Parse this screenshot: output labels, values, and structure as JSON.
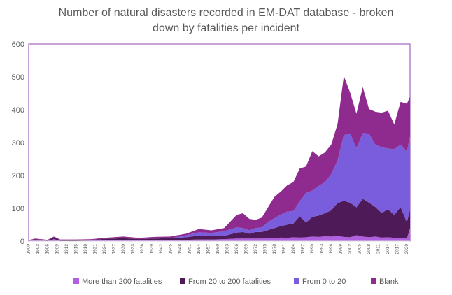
{
  "chart_data": {
    "type": "area",
    "stacked": true,
    "title": "Number of natural disasters recorded in EM-DAT database - broken down by fatalities per incident",
    "title_lines": [
      "Number of natural disasters recorded in EM-DAT database - broken",
      "down by fatalities per incident"
    ],
    "xlabel": "",
    "ylabel": "",
    "x_range": [
      1900,
      2021
    ],
    "ylim": [
      0,
      600
    ],
    "y_ticks": [
      0,
      100,
      200,
      300,
      400,
      500,
      600
    ],
    "y_tick_labels": [
      "0",
      "100",
      "200",
      "300",
      "400",
      "500",
      "600"
    ],
    "x_tick_labels": [
      "1900",
      "1903",
      "1906",
      "1909",
      "1912",
      "1915",
      "1918",
      "1921",
      "1924",
      "1927",
      "1930",
      "1933",
      "1936",
      "1939",
      "1942",
      "1945",
      "1948",
      "1951",
      "1954",
      "1957",
      "1960",
      "1963",
      "1966",
      "1969",
      "1972",
      "1975",
      "1978",
      "1981",
      "1984",
      "1987",
      "1990",
      "1993",
      "1996",
      "1999",
      "2002",
      "2005",
      "2008",
      "2011",
      "2014",
      "2017",
      "2020"
    ],
    "grid": false,
    "legend_position": "bottom",
    "colors": {
      "more_than_200": "#b05fe0",
      "from_20_to_200": "#4e1a57",
      "from_0_to_20": "#7a5ddd",
      "blank": "#8f2a8f",
      "frame": "#8e44ad",
      "axis_text": "#595959"
    },
    "series": [
      {
        "name": "More than 200 fatalities",
        "key": "more_than_200",
        "points": [
          [
            1900,
            1
          ],
          [
            1902,
            4
          ],
          [
            1906,
            1
          ],
          [
            1908,
            6
          ],
          [
            1910,
            1
          ],
          [
            1915,
            1
          ],
          [
            1920,
            2
          ],
          [
            1924,
            3
          ],
          [
            1930,
            4
          ],
          [
            1935,
            2
          ],
          [
            1940,
            3
          ],
          [
            1945,
            3
          ],
          [
            1950,
            4
          ],
          [
            1954,
            5
          ],
          [
            1958,
            5
          ],
          [
            1962,
            6
          ],
          [
            1966,
            8
          ],
          [
            1970,
            8
          ],
          [
            1974,
            8
          ],
          [
            1976,
            9
          ],
          [
            1978,
            10
          ],
          [
            1980,
            11
          ],
          [
            1982,
            10
          ],
          [
            1984,
            12
          ],
          [
            1986,
            11
          ],
          [
            1988,
            12
          ],
          [
            1990,
            14
          ],
          [
            1992,
            13
          ],
          [
            1994,
            15
          ],
          [
            1996,
            14
          ],
          [
            1998,
            16
          ],
          [
            2000,
            13
          ],
          [
            2002,
            12
          ],
          [
            2004,
            18
          ],
          [
            2006,
            14
          ],
          [
            2008,
            12
          ],
          [
            2010,
            14
          ],
          [
            2012,
            11
          ],
          [
            2014,
            12
          ],
          [
            2016,
            10
          ],
          [
            2018,
            9
          ],
          [
            2020,
            8
          ],
          [
            2021,
            40
          ]
        ]
      },
      {
        "name": "From 20 to 200 fatalities",
        "key": "from_20_to_200",
        "points": [
          [
            1900,
            1
          ],
          [
            1902,
            2
          ],
          [
            1906,
            1
          ],
          [
            1908,
            6
          ],
          [
            1910,
            2
          ],
          [
            1915,
            2
          ],
          [
            1920,
            2
          ],
          [
            1924,
            4
          ],
          [
            1930,
            5
          ],
          [
            1935,
            4
          ],
          [
            1940,
            5
          ],
          [
            1945,
            6
          ],
          [
            1950,
            8
          ],
          [
            1954,
            12
          ],
          [
            1958,
            10
          ],
          [
            1962,
            10
          ],
          [
            1966,
            18
          ],
          [
            1968,
            20
          ],
          [
            1970,
            15
          ],
          [
            1972,
            20
          ],
          [
            1974,
            20
          ],
          [
            1976,
            25
          ],
          [
            1978,
            30
          ],
          [
            1980,
            35
          ],
          [
            1982,
            40
          ],
          [
            1984,
            42
          ],
          [
            1986,
            65
          ],
          [
            1988,
            45
          ],
          [
            1990,
            60
          ],
          [
            1992,
            65
          ],
          [
            1994,
            70
          ],
          [
            1996,
            80
          ],
          [
            1998,
            100
          ],
          [
            2000,
            110
          ],
          [
            2002,
            105
          ],
          [
            2004,
            85
          ],
          [
            2006,
            115
          ],
          [
            2008,
            105
          ],
          [
            2010,
            90
          ],
          [
            2012,
            75
          ],
          [
            2014,
            85
          ],
          [
            2016,
            70
          ],
          [
            2018,
            95
          ],
          [
            2020,
            50
          ],
          [
            2021,
            55
          ]
        ]
      },
      {
        "name": "From 0 to 20",
        "key": "from_0_to_20",
        "points": [
          [
            1900,
            0
          ],
          [
            1902,
            0
          ],
          [
            1906,
            0
          ],
          [
            1908,
            0
          ],
          [
            1910,
            0
          ],
          [
            1915,
            0
          ],
          [
            1920,
            0
          ],
          [
            1924,
            0
          ],
          [
            1930,
            0
          ],
          [
            1935,
            0
          ],
          [
            1940,
            0
          ],
          [
            1945,
            0
          ],
          [
            1950,
            6
          ],
          [
            1954,
            10
          ],
          [
            1958,
            10
          ],
          [
            1962,
            14
          ],
          [
            1966,
            16
          ],
          [
            1968,
            12
          ],
          [
            1970,
            10
          ],
          [
            1972,
            12
          ],
          [
            1974,
            14
          ],
          [
            1976,
            25
          ],
          [
            1978,
            30
          ],
          [
            1980,
            35
          ],
          [
            1982,
            40
          ],
          [
            1984,
            38
          ],
          [
            1986,
            45
          ],
          [
            1988,
            90
          ],
          [
            1990,
            80
          ],
          [
            1992,
            90
          ],
          [
            1994,
            95
          ],
          [
            1996,
            110
          ],
          [
            1998,
            130
          ],
          [
            2000,
            200
          ],
          [
            2002,
            210
          ],
          [
            2004,
            180
          ],
          [
            2006,
            200
          ],
          [
            2008,
            210
          ],
          [
            2010,
            190
          ],
          [
            2012,
            200
          ],
          [
            2014,
            185
          ],
          [
            2016,
            200
          ],
          [
            2018,
            190
          ],
          [
            2020,
            215
          ],
          [
            2021,
            225
          ]
        ]
      },
      {
        "name": "Blank",
        "key": "blank",
        "points": [
          [
            1900,
            1
          ],
          [
            1902,
            2
          ],
          [
            1906,
            2
          ],
          [
            1908,
            2
          ],
          [
            1910,
            2
          ],
          [
            1915,
            2
          ],
          [
            1920,
            2
          ],
          [
            1924,
            3
          ],
          [
            1930,
            5
          ],
          [
            1935,
            4
          ],
          [
            1940,
            5
          ],
          [
            1945,
            5
          ],
          [
            1950,
            5
          ],
          [
            1954,
            10
          ],
          [
            1958,
            8
          ],
          [
            1962,
            10
          ],
          [
            1966,
            38
          ],
          [
            1968,
            45
          ],
          [
            1970,
            35
          ],
          [
            1972,
            25
          ],
          [
            1974,
            30
          ],
          [
            1976,
            45
          ],
          [
            1978,
            65
          ],
          [
            1980,
            70
          ],
          [
            1982,
            80
          ],
          [
            1984,
            88
          ],
          [
            1986,
            100
          ],
          [
            1988,
            80
          ],
          [
            1990,
            120
          ],
          [
            1992,
            90
          ],
          [
            1994,
            90
          ],
          [
            1996,
            90
          ],
          [
            1998,
            110
          ],
          [
            2000,
            180
          ],
          [
            2002,
            125
          ],
          [
            2004,
            105
          ],
          [
            2006,
            140
          ],
          [
            2008,
            75
          ],
          [
            2010,
            100
          ],
          [
            2012,
            105
          ],
          [
            2014,
            115
          ],
          [
            2016,
            75
          ],
          [
            2018,
            130
          ],
          [
            2020,
            145
          ],
          [
            2021,
            120
          ]
        ]
      }
    ]
  }
}
